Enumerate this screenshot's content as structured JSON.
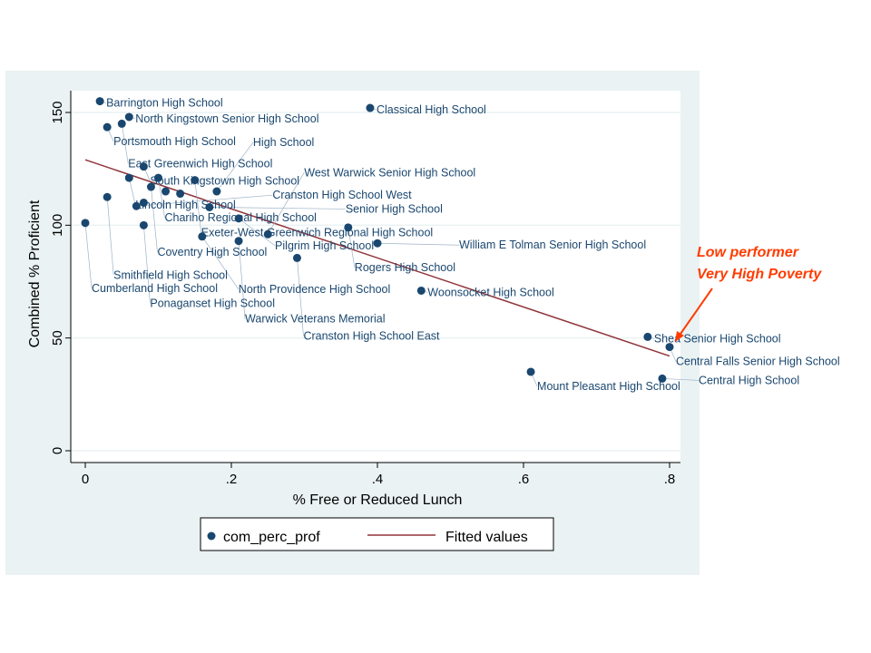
{
  "chart_data": {
    "type": "scatter",
    "xlabel": "% Free or Reduced Lunch",
    "ylabel": "Combined % Proficient",
    "xlim": [
      0,
      0.8
    ],
    "ylim": [
      0,
      150
    ],
    "x_ticks": [
      0,
      0.2,
      0.4,
      0.6,
      0.8
    ],
    "x_tick_labels": [
      "0",
      ".2",
      ".4",
      ".6",
      ".8"
    ],
    "y_ticks": [
      0,
      50,
      100,
      150
    ],
    "y_tick_labels": [
      "0",
      "50",
      "100",
      "150"
    ],
    "grid": true,
    "legend": {
      "placement": "bottom",
      "entries": [
        "com_perc_prof",
        "Fitted values"
      ]
    },
    "colors": {
      "points": "#1a476f",
      "fit": "#90353b",
      "background": "#eaf2f3",
      "annotation": "#ff3c00"
    },
    "series": [
      {
        "name": "com_perc_prof",
        "points": [
          {
            "x": 0.02,
            "y": 155,
            "label": "Barrington High School"
          },
          {
            "x": 0.39,
            "y": 152,
            "label": "Classical High School"
          },
          {
            "x": 0.06,
            "y": 148,
            "label": "North Kingstown Senior High School"
          },
          {
            "x": 0.03,
            "y": 143.5,
            "label": "Portsmouth High School"
          },
          {
            "x": 0.05,
            "y": 145,
            "label": "East Greenwich High School"
          },
          {
            "x": 0.08,
            "y": 126,
            "label": "South Kingstown High School"
          },
          {
            "x": 0.06,
            "y": 121,
            "label": "Lincoln High School"
          },
          {
            "x": 0.1,
            "y": 121,
            "label": "Chariho Regional High School"
          },
          {
            "x": 0.15,
            "y": 120,
            "label": "Exeter-West Greenwich Regional High School"
          },
          {
            "x": 0.09,
            "y": 117,
            "label": "Coventry High School"
          },
          {
            "x": 0.11,
            "y": 115,
            "label": ""
          },
          {
            "x": 0.13,
            "y": 114,
            "label": ""
          },
          {
            "x": 0.18,
            "y": 115,
            "label": "High School"
          },
          {
            "x": 0.03,
            "y": 112.5,
            "label": "Smithfield High School"
          },
          {
            "x": 0.07,
            "y": 108.5,
            "label": "Cranston High School West"
          },
          {
            "x": 0.08,
            "y": 110,
            "label": ""
          },
          {
            "x": 0.17,
            "y": 108,
            "label": "Senior High School"
          },
          {
            "x": 0.0,
            "y": 101,
            "label": "Cumberland High School"
          },
          {
            "x": 0.08,
            "y": 100,
            "label": "Ponaganset High School"
          },
          {
            "x": 0.21,
            "y": 103,
            "label": "Pilgrim High School"
          },
          {
            "x": 0.36,
            "y": 99,
            "label": "Rogers High School"
          },
          {
            "x": 0.16,
            "y": 95,
            "label": "North Providence High School"
          },
          {
            "x": 0.25,
            "y": 96,
            "label": "West Warwick Senior High School"
          },
          {
            "x": 0.21,
            "y": 93,
            "label": "Warwick Veterans Memorial"
          },
          {
            "x": 0.4,
            "y": 92,
            "label": "William E Tolman Senior High School"
          },
          {
            "x": 0.29,
            "y": 85.5,
            "label": "Cranston High School East"
          },
          {
            "x": 0.46,
            "y": 71,
            "label": "Woonsocket High School"
          },
          {
            "x": 0.77,
            "y": 50.5,
            "label": "Shea Senior High School"
          },
          {
            "x": 0.8,
            "y": 46,
            "label": "Central Falls Senior High School"
          },
          {
            "x": 0.61,
            "y": 35,
            "label": "Mount Pleasant High School"
          },
          {
            "x": 0.79,
            "y": 32,
            "label": "Central High School"
          }
        ]
      },
      {
        "name": "Fitted values",
        "type": "line",
        "points": [
          {
            "x": 0,
            "y": 129
          },
          {
            "x": 0.8,
            "y": 42
          }
        ]
      }
    ],
    "annotation": {
      "lines": [
        "Low performer",
        "Very High Poverty"
      ],
      "target": {
        "x": 0.8,
        "y": 50
      }
    }
  }
}
